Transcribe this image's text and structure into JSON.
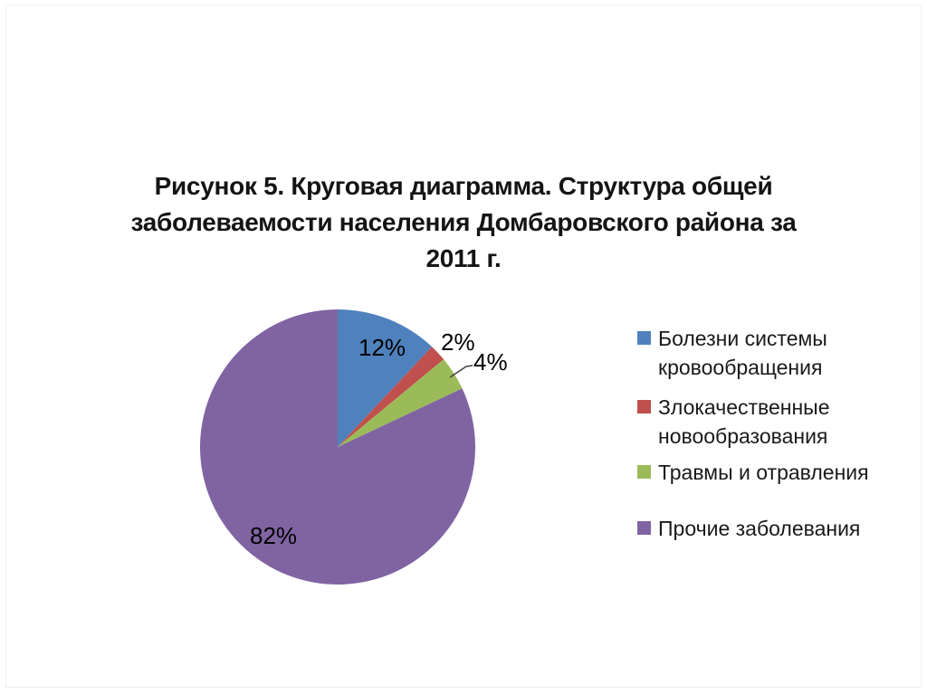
{
  "slide": {
    "title": "Рисунок 5. Круговая диаграмма. Структура общей заболеваемости населения Домбаровского района за 2011 г.",
    "title_lines": [
      "Рисунок 5. Круговая диаграмма. Структура общей",
      "заболеваемости населения Домбаровского района за",
      "2011 г."
    ]
  },
  "chart_data": {
    "type": "pie",
    "title": "Рисунок 5. Круговая диаграмма. Структура общей заболеваемости населения Домбаровского района за 2011 г.",
    "categories": [
      "Болезни системы кровообращения",
      "Злокачественные новообразования",
      "Травмы и отравления",
      "Прочие заболевания"
    ],
    "values": [
      12,
      2,
      4,
      82
    ],
    "unit": "%",
    "data_labels": [
      "12%",
      "2%",
      "4%",
      "82%"
    ],
    "colors": [
      "#4F81BD",
      "#C0504D",
      "#9BBB59",
      "#8064A2"
    ],
    "legend_position": "right",
    "start_angle_deg": 0,
    "direction": "clockwise",
    "leader_line_color": "#404040"
  }
}
